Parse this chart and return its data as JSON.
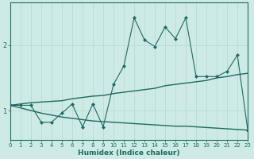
{
  "xlabel": "Humidex (Indice chaleur)",
  "bg_color": "#ceeae6",
  "line_color": "#1d6b62",
  "grid_color": "#b8dbd7",
  "x_ticks": [
    0,
    1,
    2,
    3,
    4,
    5,
    6,
    7,
    8,
    9,
    10,
    11,
    12,
    13,
    14,
    15,
    16,
    17,
    18,
    19,
    20,
    21,
    22,
    23
  ],
  "y_ticks": [
    1,
    2
  ],
  "ylim": [
    0.55,
    2.65
  ],
  "xlim": [
    0,
    23
  ],
  "line1_x": [
    0,
    1,
    2,
    3,
    4,
    5,
    6,
    7,
    8,
    9,
    10,
    11,
    12,
    13,
    14,
    15,
    16,
    17,
    18,
    19,
    20,
    21,
    22,
    23
  ],
  "line1_y": [
    1.08,
    1.08,
    1.08,
    0.82,
    0.82,
    0.96,
    1.1,
    0.75,
    1.1,
    0.75,
    1.4,
    1.68,
    2.42,
    2.08,
    1.98,
    2.28,
    2.1,
    2.42,
    1.52,
    1.52,
    1.52,
    1.6,
    1.85,
    0.7
  ],
  "line2_x": [
    0,
    1,
    2,
    3,
    4,
    5,
    6,
    7,
    8,
    9,
    10,
    11,
    12,
    13,
    14,
    15,
    16,
    17,
    18,
    19,
    20,
    21,
    22,
    23
  ],
  "line2_y": [
    1.08,
    1.1,
    1.12,
    1.13,
    1.14,
    1.15,
    1.18,
    1.2,
    1.22,
    1.23,
    1.26,
    1.28,
    1.3,
    1.32,
    1.34,
    1.38,
    1.4,
    1.42,
    1.44,
    1.46,
    1.5,
    1.52,
    1.55,
    1.57
  ],
  "line3_x": [
    0,
    1,
    2,
    3,
    4,
    5,
    6,
    7,
    8,
    9,
    10,
    11,
    12,
    13,
    14,
    15,
    16,
    17,
    18,
    19,
    20,
    21,
    22,
    23
  ],
  "line3_y": [
    1.08,
    1.04,
    1.0,
    0.96,
    0.93,
    0.9,
    0.88,
    0.86,
    0.84,
    0.83,
    0.82,
    0.81,
    0.8,
    0.79,
    0.78,
    0.77,
    0.76,
    0.76,
    0.75,
    0.74,
    0.73,
    0.72,
    0.71,
    0.7
  ]
}
